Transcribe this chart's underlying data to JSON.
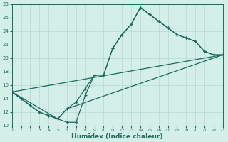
{
  "xlabel": "Humidex (Indice chaleur)",
  "xlim": [
    0,
    23
  ],
  "ylim": [
    10,
    28
  ],
  "xticks": [
    0,
    1,
    2,
    3,
    4,
    5,
    6,
    7,
    8,
    9,
    10,
    11,
    12,
    13,
    14,
    15,
    16,
    17,
    18,
    19,
    20,
    21,
    22,
    23
  ],
  "yticks": [
    10,
    12,
    14,
    16,
    18,
    20,
    22,
    24,
    26,
    28
  ],
  "bg_color": "#d4eee8",
  "line_color": "#1a6b5e",
  "grid_color": "#b5d8d2",
  "curve1_x": [
    0,
    1,
    2,
    3,
    4,
    5,
    6,
    7,
    8,
    9,
    10,
    11,
    12,
    13,
    14,
    15,
    16,
    17,
    18,
    19,
    20,
    21,
    22,
    23
  ],
  "curve1_y": [
    15,
    14,
    13,
    12,
    11.5,
    11,
    10.5,
    10.5,
    14.5,
    17.5,
    17.5,
    21.5,
    23.5,
    25.0,
    27.5,
    26.5,
    25.5,
    24.5,
    23.5,
    23.0,
    22.5,
    21.0,
    20.5,
    20.5
  ],
  "curve2_x": [
    0,
    3,
    4,
    5,
    6,
    7,
    8,
    9,
    10,
    11,
    12,
    13,
    14,
    15,
    16,
    17,
    18,
    19,
    20,
    21,
    22,
    23
  ],
  "curve2_y": [
    15,
    12,
    11.5,
    11,
    12.5,
    13.5,
    15.5,
    17.5,
    17.5,
    21.5,
    23.5,
    25.0,
    27.5,
    26.5,
    25.5,
    24.5,
    23.5,
    23.0,
    22.5,
    21.0,
    20.5,
    20.5
  ],
  "line3_x": [
    0,
    23
  ],
  "line3_y": [
    15,
    20.5
  ],
  "line4_x": [
    0,
    5,
    6,
    23
  ],
  "line4_y": [
    15,
    11,
    12.5,
    20.5
  ]
}
